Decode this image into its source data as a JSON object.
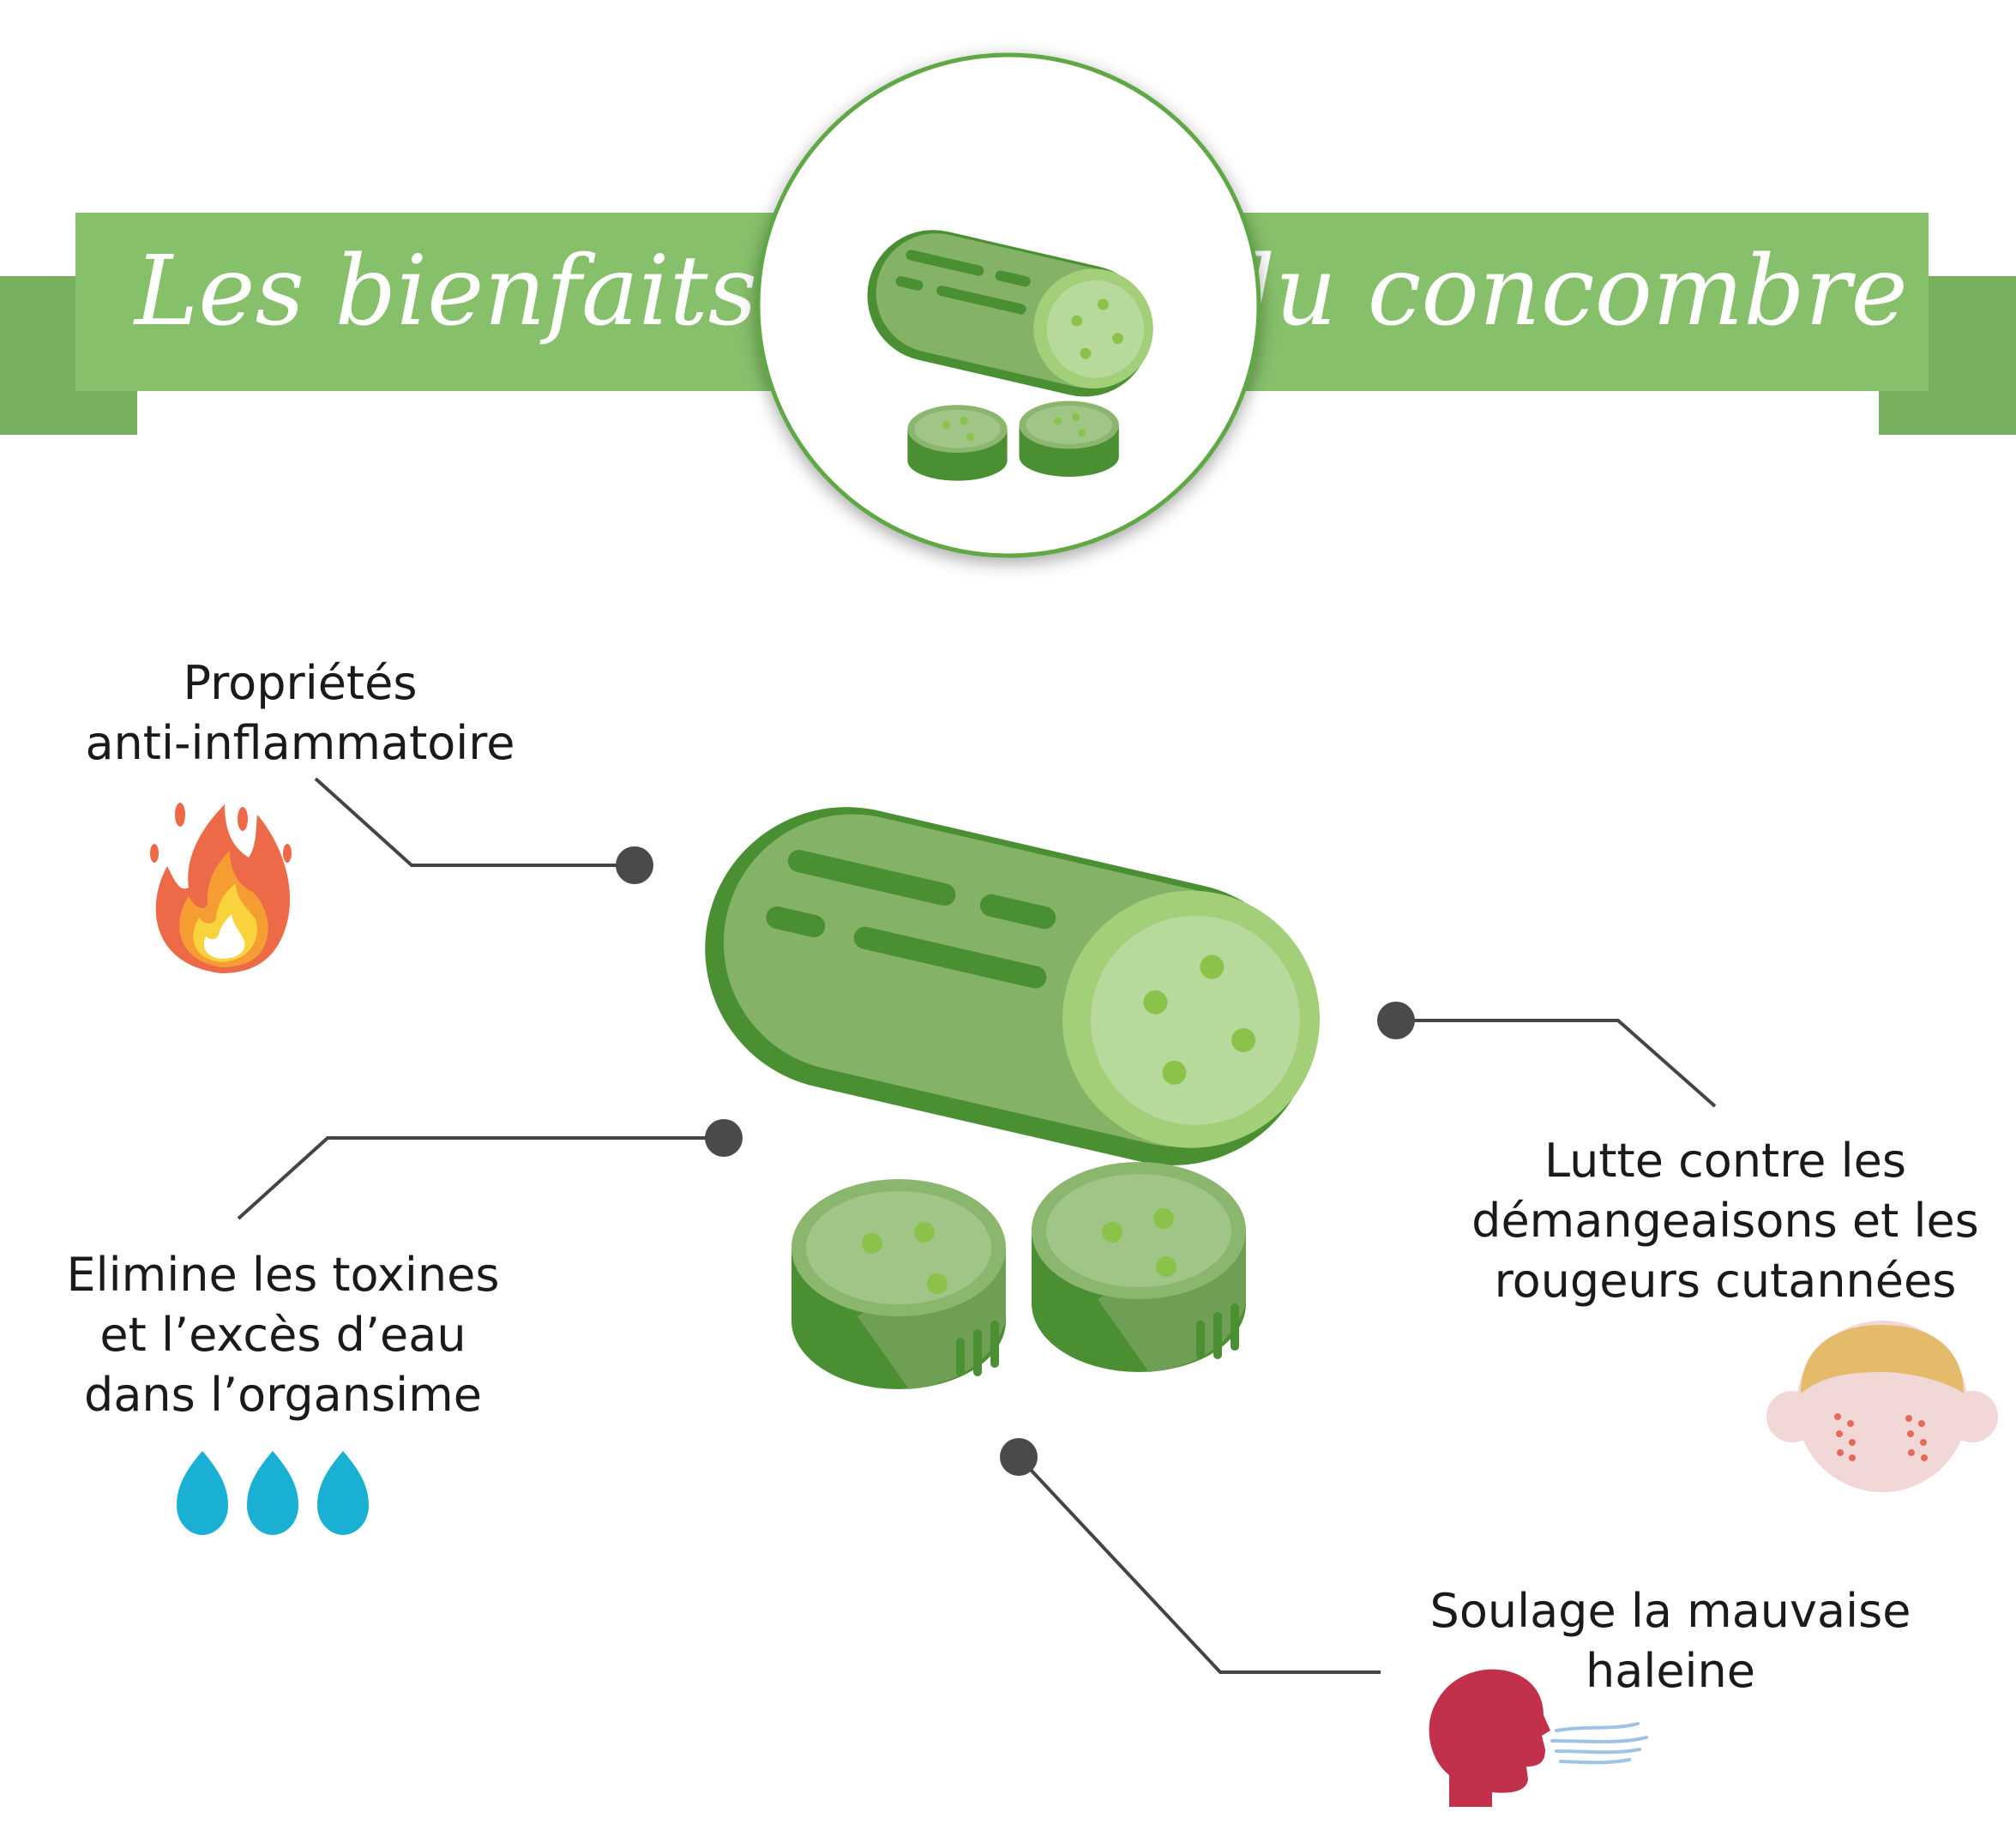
{
  "header": {
    "title_left": "Les bienfaits",
    "title_right": "du concombre"
  },
  "benefits": [
    {
      "id": "anti-inflammatory",
      "lines": [
        "Propriétés",
        "anti-inflammatoire"
      ],
      "icon": "fire-icon"
    },
    {
      "id": "detox",
      "lines": [
        "Elimine les toxines",
        "et l’excès d’eau",
        "dans l’organsime"
      ],
      "icon": "water-drops-icon"
    },
    {
      "id": "skin",
      "lines": [
        "Lutte contre les",
        "démangeaisons et les",
        "rougeurs cutannées"
      ],
      "icon": "irritated-face-icon"
    },
    {
      "id": "breath",
      "lines": [
        "Soulage la mauvaise",
        "haleine"
      ],
      "icon": "breath-head-icon"
    }
  ],
  "colors": {
    "banner": "#86c06a",
    "banner_dark": "#77b05c",
    "cucumber_dark": "#4a8f32",
    "cucumber_mid": "#84b368",
    "cucumber_light": "#b8d99c",
    "seed": "#8bc34a",
    "connector": "#444444",
    "fire": "#ec6a47",
    "drop": "#1ab0d4",
    "face": "#f1d7d6",
    "hair": "#e4bb6b",
    "breath": "#c2314b"
  }
}
